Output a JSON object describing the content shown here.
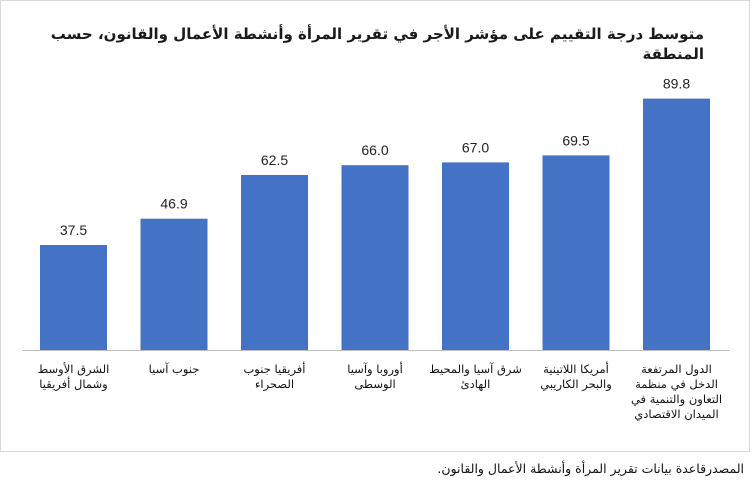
{
  "chart_data": {
    "type": "bar",
    "title": "متوسط درجة التقييم على مؤشر الأجر في تقرير المرأة وأنشطة الأعمال والقانون، حسب المنطقة",
    "categories": [
      "الشرق الأوسط وشمال أفريقيا",
      "جنوب آسيا",
      "أفريقيا جنوب الصحراء",
      "أوروبا وآسيا الوسطى",
      "شرق آسيا والمحيط الهادئ",
      "أمريكا اللاتينية والبحر الكاريبي",
      "الدول المرتفعة الدخل في منظمة التعاون والتنمية في الميدان الاقتصادي"
    ],
    "values": [
      37.5,
      46.9,
      62.5,
      66.0,
      67.0,
      69.5,
      89.8
    ],
    "value_labels": [
      "37.5",
      "46.9",
      "62.5",
      "66.0",
      "67.0",
      "69.5",
      "89.8"
    ],
    "bar_color": "#4472c4",
    "xlabel": "",
    "ylabel": "",
    "ylim": [
      0,
      100
    ],
    "grid": false,
    "legend": "none"
  },
  "source_note": "المصدرقاعدة بيانات تقرير المرأة وأنشطة الأعمال والقانون."
}
